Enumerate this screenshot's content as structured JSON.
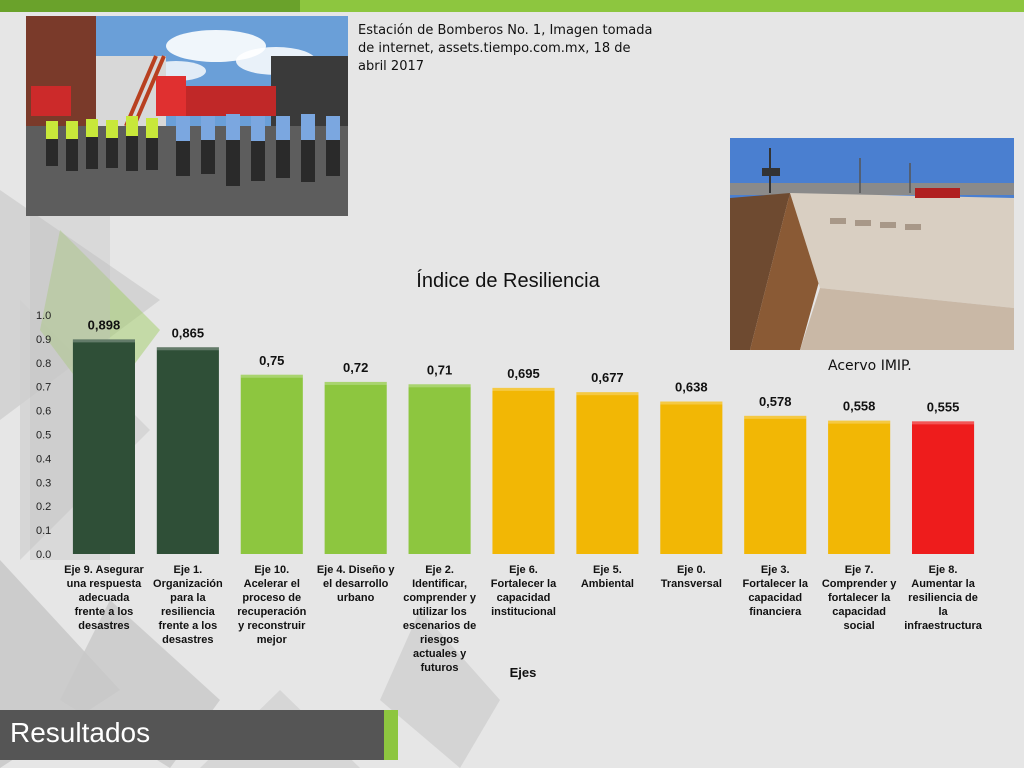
{
  "photo_top_caption": "Estación de Bomberos No. 1, Imagen tomada de internet, assets.tiempo.com.mx, 18 de abril 2017",
  "photo_right_caption": "Acervo IMIP.",
  "footer": {
    "title": "Resultados"
  },
  "colors": {
    "dark_green": "#2f4f37",
    "light_green": "#8dc63f",
    "yellow": "#f2b705",
    "red": "#ee1c1c",
    "accent": "#8dc63f"
  },
  "chart_data": {
    "type": "bar",
    "title": "Índice de Resiliencia",
    "xlabel": "Ejes",
    "ylabel": "",
    "ylim": [
      0,
      1.0
    ],
    "yticks": [
      "0.0",
      "0.1",
      "0.2",
      "0.3",
      "0.4",
      "0.5",
      "0.6",
      "0.7",
      "0.8",
      "0.9",
      "1.0"
    ],
    "grid": false,
    "legend": "none",
    "bars": [
      {
        "category": [
          "Eje 9. Asegurar",
          "una respuesta",
          "adecuada",
          "frente a los",
          "desastres"
        ],
        "value": 0.898,
        "label": "0,898",
        "color": "#2f4f37"
      },
      {
        "category": [
          "Eje 1.",
          "Organización",
          "para la",
          "resiliencia",
          "frente a los",
          "desastres"
        ],
        "value": 0.865,
        "label": "0,865",
        "color": "#2f4f37"
      },
      {
        "category": [
          "Eje 10.",
          "Acelerar el",
          "proceso de",
          "recuperación",
          "y reconstruir",
          "mejor"
        ],
        "value": 0.75,
        "label": "0,75",
        "color": "#8dc63f"
      },
      {
        "category": [
          "Eje 4. Diseño y",
          "el desarrollo",
          "urbano"
        ],
        "value": 0.72,
        "label": "0,72",
        "color": "#8dc63f"
      },
      {
        "category": [
          "Eje 2.",
          "Identificar,",
          "comprender y",
          "utilizar los",
          "escenarios de",
          "riesgos",
          "actuales y",
          "futuros"
        ],
        "value": 0.71,
        "label": "0,71",
        "color": "#8dc63f"
      },
      {
        "category": [
          "Eje 6.",
          "Fortalecer la",
          "capacidad",
          "institucional"
        ],
        "value": 0.695,
        "label": "0,695",
        "color": "#f2b705"
      },
      {
        "category": [
          "Eje 5.",
          "Ambiental"
        ],
        "value": 0.677,
        "label": "0,677",
        "color": "#f2b705"
      },
      {
        "category": [
          "Eje 0.",
          "Transversal"
        ],
        "value": 0.638,
        "label": "0,638",
        "color": "#f2b705"
      },
      {
        "category": [
          "Eje 3.",
          "Fortalecer la",
          "capacidad",
          "financiera"
        ],
        "value": 0.578,
        "label": "0,578",
        "color": "#f2b705"
      },
      {
        "category": [
          "Eje 7.",
          "Comprender y",
          "fortalecer la",
          "capacidad",
          "social"
        ],
        "value": 0.558,
        "label": "0,558",
        "color": "#f2b705"
      },
      {
        "category": [
          "Eje 8.",
          "Aumentar la",
          "resiliencia de",
          "la",
          "infraestructura"
        ],
        "value": 0.555,
        "label": "0,555",
        "color": "#ee1c1c"
      }
    ]
  }
}
